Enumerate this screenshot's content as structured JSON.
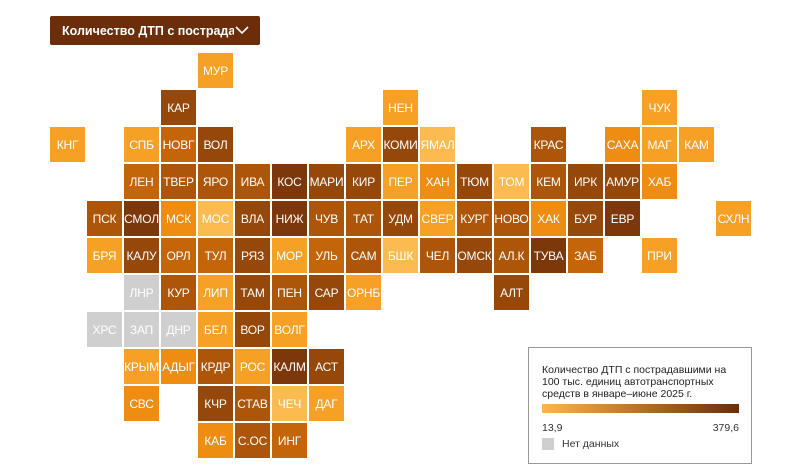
{
  "metric_dropdown": {
    "label": "Количество ДТП с пострадав…"
  },
  "legend": {
    "title": "Количество ДТП с пострадавшими на 100 тыс. единиц автотранспортных средств в январе–июне 2025 г.",
    "min_label": "13,9",
    "max_label": "379,6",
    "no_data_label": "Нет данных",
    "gradient_from": "#f9b84a",
    "gradient_to": "#6b2d0a",
    "no_data_color": "#cfcfcf"
  },
  "palette": [
    "#fbbb50",
    "#f6a025",
    "#ef8c12",
    "#d97a08",
    "#c5650a",
    "#ad560a",
    "#96470a",
    "#7c370a"
  ],
  "regions": [
    {
      "code": "МУР",
      "col": 5,
      "row": 0,
      "level": 1
    },
    {
      "code": "КАР",
      "col": 4,
      "row": 1,
      "level": 6
    },
    {
      "code": "НЕН",
      "col": 10,
      "row": 1,
      "level": 1
    },
    {
      "code": "ЧУК",
      "col": 17,
      "row": 1,
      "level": 1
    },
    {
      "code": "КНГ",
      "col": 1,
      "row": 2,
      "level": 1
    },
    {
      "code": "СПБ",
      "col": 3,
      "row": 2,
      "level": 1
    },
    {
      "code": "НОВГ",
      "col": 4,
      "row": 2,
      "level": 4
    },
    {
      "code": "ВОЛ",
      "col": 5,
      "row": 2,
      "level": 6
    },
    {
      "code": "АРХ",
      "col": 9,
      "row": 2,
      "level": 1
    },
    {
      "code": "КОМИ",
      "col": 10,
      "row": 2,
      "level": 6
    },
    {
      "code": "ЯМАЛ",
      "col": 11,
      "row": 2,
      "level": 0
    },
    {
      "code": "КРАС",
      "col": 14,
      "row": 2,
      "level": 5
    },
    {
      "code": "САХА",
      "col": 16,
      "row": 2,
      "level": 2
    },
    {
      "code": "МАГ",
      "col": 17,
      "row": 2,
      "level": 1
    },
    {
      "code": "КАМ",
      "col": 18,
      "row": 2,
      "level": 1
    },
    {
      "code": "ЛЕН",
      "col": 3,
      "row": 3,
      "level": 4
    },
    {
      "code": "ТВЕР",
      "col": 4,
      "row": 3,
      "level": 5
    },
    {
      "code": "ЯРО",
      "col": 5,
      "row": 3,
      "level": 5
    },
    {
      "code": "ИВА",
      "col": 6,
      "row": 3,
      "level": 5
    },
    {
      "code": "КОС",
      "col": 7,
      "row": 3,
      "level": 7
    },
    {
      "code": "МАРИ",
      "col": 8,
      "row": 3,
      "level": 6
    },
    {
      "code": "КИР",
      "col": 9,
      "row": 3,
      "level": 6
    },
    {
      "code": "ПЕР",
      "col": 10,
      "row": 3,
      "level": 1
    },
    {
      "code": "ХАН",
      "col": 11,
      "row": 3,
      "level": 2
    },
    {
      "code": "ТЮМ",
      "col": 12,
      "row": 3,
      "level": 6
    },
    {
      "code": "ТОМ",
      "col": 13,
      "row": 3,
      "level": 0
    },
    {
      "code": "КЕМ",
      "col": 14,
      "row": 3,
      "level": 5
    },
    {
      "code": "ИРК",
      "col": 15,
      "row": 3,
      "level": 6
    },
    {
      "code": "АМУР",
      "col": 16,
      "row": 3,
      "level": 6
    },
    {
      "code": "ХАБ",
      "col": 17,
      "row": 3,
      "level": 2
    },
    {
      "code": "ПСК",
      "col": 2,
      "row": 4,
      "level": 5
    },
    {
      "code": "СМОЛ",
      "col": 3,
      "row": 4,
      "level": 7
    },
    {
      "code": "МСК",
      "col": 4,
      "row": 4,
      "level": 2
    },
    {
      "code": "МОС",
      "col": 5,
      "row": 4,
      "level": 0
    },
    {
      "code": "ВЛА",
      "col": 6,
      "row": 4,
      "level": 6
    },
    {
      "code": "НИЖ",
      "col": 7,
      "row": 4,
      "level": 7
    },
    {
      "code": "ЧУВ",
      "col": 8,
      "row": 4,
      "level": 5
    },
    {
      "code": "ТАТ",
      "col": 9,
      "row": 4,
      "level": 5
    },
    {
      "code": "УДМ",
      "col": 10,
      "row": 4,
      "level": 6
    },
    {
      "code": "СВЕР",
      "col": 11,
      "row": 4,
      "level": 1
    },
    {
      "code": "КУРГ",
      "col": 12,
      "row": 4,
      "level": 5
    },
    {
      "code": "НОВО",
      "col": 13,
      "row": 4,
      "level": 5
    },
    {
      "code": "ХАК",
      "col": 14,
      "row": 4,
      "level": 2
    },
    {
      "code": "БУР",
      "col": 15,
      "row": 4,
      "level": 6
    },
    {
      "code": "ЕВР",
      "col": 16,
      "row": 4,
      "level": 7
    },
    {
      "code": "СХЛН",
      "col": 19,
      "row": 4,
      "level": 1
    },
    {
      "code": "БРЯ",
      "col": 2,
      "row": 5,
      "level": 1
    },
    {
      "code": "КАЛУ",
      "col": 3,
      "row": 5,
      "level": 6
    },
    {
      "code": "ОРЛ",
      "col": 4,
      "row": 5,
      "level": 4
    },
    {
      "code": "ТУЛ",
      "col": 5,
      "row": 5,
      "level": 4
    },
    {
      "code": "РЯЗ",
      "col": 6,
      "row": 5,
      "level": 6
    },
    {
      "code": "МОР",
      "col": 7,
      "row": 5,
      "level": 1
    },
    {
      "code": "УЛЬ",
      "col": 8,
      "row": 5,
      "level": 4
    },
    {
      "code": "САМ",
      "col": 9,
      "row": 5,
      "level": 5
    },
    {
      "code": "БШК",
      "col": 10,
      "row": 5,
      "level": 0
    },
    {
      "code": "ЧЕЛ",
      "col": 11,
      "row": 5,
      "level": 5
    },
    {
      "code": "ОМСК",
      "col": 12,
      "row": 5,
      "level": 6
    },
    {
      "code": "АЛ.К",
      "col": 13,
      "row": 5,
      "level": 5
    },
    {
      "code": "ТУВА",
      "col": 14,
      "row": 5,
      "level": 7
    },
    {
      "code": "ЗАБ",
      "col": 15,
      "row": 5,
      "level": 4
    },
    {
      "code": "ПРИ",
      "col": 17,
      "row": 5,
      "level": 1
    },
    {
      "code": "ЛНР",
      "col": 3,
      "row": 6,
      "level": -1
    },
    {
      "code": "КУР",
      "col": 4,
      "row": 6,
      "level": 5
    },
    {
      "code": "ЛИП",
      "col": 5,
      "row": 6,
      "level": 1
    },
    {
      "code": "ТАМ",
      "col": 6,
      "row": 6,
      "level": 6
    },
    {
      "code": "ПЕН",
      "col": 7,
      "row": 6,
      "level": 5
    },
    {
      "code": "САР",
      "col": 8,
      "row": 6,
      "level": 6
    },
    {
      "code": "ОРНБ",
      "col": 9,
      "row": 6,
      "level": 1
    },
    {
      "code": "АЛТ",
      "col": 13,
      "row": 6,
      "level": 6
    },
    {
      "code": "ХРС",
      "col": 2,
      "row": 7,
      "level": -1
    },
    {
      "code": "ЗАП",
      "col": 3,
      "row": 7,
      "level": -1
    },
    {
      "code": "ДНР",
      "col": 4,
      "row": 7,
      "level": -1
    },
    {
      "code": "БЕЛ",
      "col": 5,
      "row": 7,
      "level": 1
    },
    {
      "code": "ВОР",
      "col": 6,
      "row": 7,
      "level": 6
    },
    {
      "code": "ВОЛГ",
      "col": 7,
      "row": 7,
      "level": 1
    },
    {
      "code": "КРЫМ",
      "col": 3,
      "row": 8,
      "level": 1
    },
    {
      "code": "АДЫГ",
      "col": 4,
      "row": 8,
      "level": 2
    },
    {
      "code": "КРДР",
      "col": 5,
      "row": 8,
      "level": 5
    },
    {
      "code": "РОС",
      "col": 6,
      "row": 8,
      "level": 1
    },
    {
      "code": "КАЛМ",
      "col": 7,
      "row": 8,
      "level": 7
    },
    {
      "code": "АСТ",
      "col": 8,
      "row": 8,
      "level": 6
    },
    {
      "code": "СВС",
      "col": 3,
      "row": 9,
      "level": 2
    },
    {
      "code": "КЧР",
      "col": 5,
      "row": 9,
      "level": 6
    },
    {
      "code": "СТАВ",
      "col": 6,
      "row": 9,
      "level": 5
    },
    {
      "code": "ЧЕЧ",
      "col": 7,
      "row": 9,
      "level": 0
    },
    {
      "code": "ДАГ",
      "col": 8,
      "row": 9,
      "level": 1
    },
    {
      "code": "КАБ",
      "col": 5,
      "row": 10,
      "level": 2
    },
    {
      "code": "С.ОС",
      "col": 6,
      "row": 10,
      "level": 5
    },
    {
      "code": "ИНГ",
      "col": 7,
      "row": 10,
      "level": 4
    }
  ]
}
